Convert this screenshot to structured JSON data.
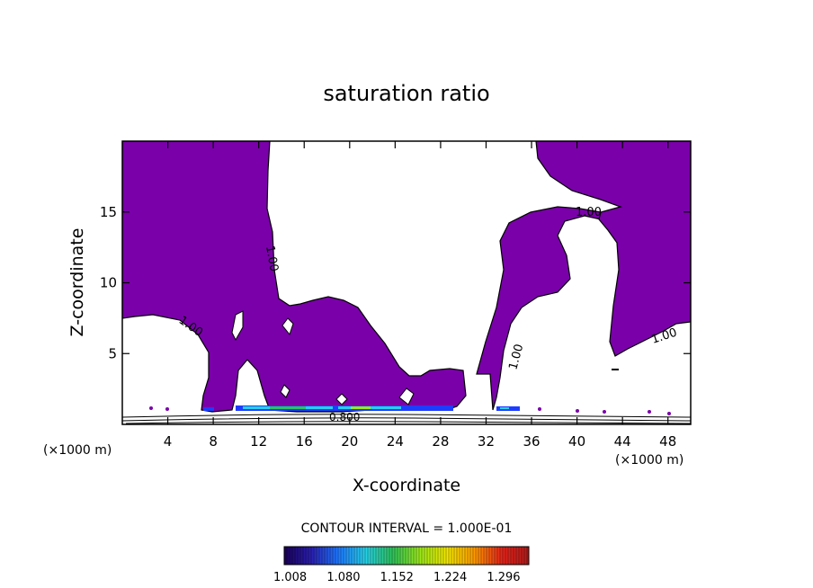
{
  "chart_data": {
    "type": "contour",
    "title": "saturation ratio",
    "xlabel": "X-coordinate",
    "ylabel": "Z-coordinate",
    "x_unit_left": "(×1000 m)",
    "x_unit_right": "(×1000 m)",
    "xlim": [
      0,
      50
    ],
    "ylim": [
      0,
      20
    ],
    "x_ticks": [
      4,
      8,
      12,
      16,
      20,
      24,
      28,
      32,
      36,
      40,
      44,
      48
    ],
    "y_ticks": [
      5,
      10,
      15
    ],
    "contour_interval_text": "CONTOUR INTERVAL = 1.000E-01",
    "contour_labels": [
      "1.00",
      "1.00",
      "1.00",
      "1.00",
      "1.00",
      "0.800"
    ],
    "colorbar_ticks": [
      "1.008",
      "1.080",
      "1.152",
      "1.224",
      "1.296"
    ],
    "colorbar_range": [
      1.0,
      1.33
    ],
    "fill_color": "#7a00aa",
    "colorbar_colors": [
      "#1a0058",
      "#2a1fb0",
      "#1e78ff",
      "#27d0e6",
      "#2ec25a",
      "#9be81a",
      "#f2e600",
      "#ff9a00",
      "#e4241a",
      "#b01a1a"
    ]
  }
}
